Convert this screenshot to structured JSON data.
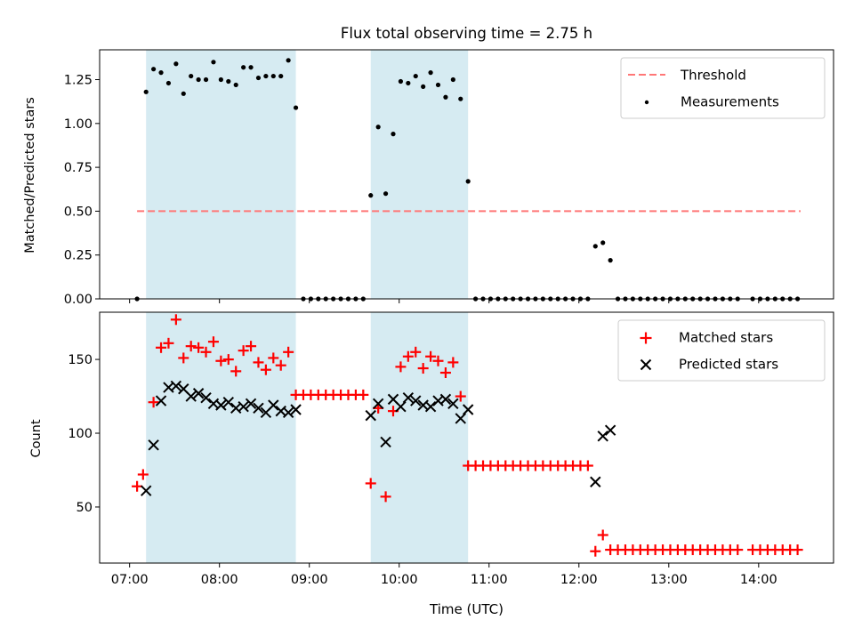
{
  "chart_data": {
    "type": "scatter",
    "title": "Flux total observing time = 2.75 h",
    "xlabel": "Time (UTC)",
    "x_ticks": [
      "07:00",
      "08:00",
      "09:00",
      "10:00",
      "11:00",
      "12:00",
      "13:00",
      "14:00"
    ],
    "observing_windows": [
      [
        "07:11",
        "08:51"
      ],
      [
        "09:41",
        "10:46"
      ]
    ],
    "colors": {
      "window": "#add8e6",
      "threshold": "#ff7777",
      "matched": "#ff0000",
      "predicted": "#000000",
      "measurement": "#000000"
    },
    "panels": [
      {
        "id": "ratio",
        "ylabel": "Matched/Predicted stars",
        "ylim": [
          0,
          1.42
        ],
        "yticks": [
          "0.00",
          "0.25",
          "0.50",
          "0.75",
          "1.00",
          "1.25"
        ],
        "legend": [
          "Threshold",
          "Measurements"
        ],
        "legend_position": "top-right",
        "threshold": {
          "name": "Threshold",
          "y": 0.5,
          "x_range": [
            "07:05",
            "14:28"
          ]
        },
        "measurements": {
          "name": "Measurements",
          "points": [
            [
              "07:05",
              0.0
            ],
            [
              "07:11",
              1.18
            ],
            [
              "07:16",
              1.31
            ],
            [
              "07:21",
              1.29
            ],
            [
              "07:26",
              1.23
            ],
            [
              "07:31",
              1.34
            ],
            [
              "07:36",
              1.17
            ],
            [
              "07:41",
              1.27
            ],
            [
              "07:46",
              1.25
            ],
            [
              "07:51",
              1.25
            ],
            [
              "07:56",
              1.35
            ],
            [
              "08:01",
              1.25
            ],
            [
              "08:06",
              1.24
            ],
            [
              "08:11",
              1.22
            ],
            [
              "08:16",
              1.32
            ],
            [
              "08:21",
              1.32
            ],
            [
              "08:26",
              1.26
            ],
            [
              "08:31",
              1.27
            ],
            [
              "08:36",
              1.27
            ],
            [
              "08:41",
              1.27
            ],
            [
              "08:46",
              1.36
            ],
            [
              "08:51",
              1.09
            ],
            [
              "08:56",
              0.0
            ],
            [
              "09:01",
              0.0
            ],
            [
              "09:06",
              0.0
            ],
            [
              "09:11",
              0.0
            ],
            [
              "09:16",
              0.0
            ],
            [
              "09:21",
              0.0
            ],
            [
              "09:26",
              0.0
            ],
            [
              "09:31",
              0.0
            ],
            [
              "09:36",
              0.0
            ],
            [
              "09:41",
              0.59
            ],
            [
              "09:46",
              0.98
            ],
            [
              "09:51",
              0.6
            ],
            [
              "09:56",
              0.94
            ],
            [
              "10:01",
              1.24
            ],
            [
              "10:06",
              1.23
            ],
            [
              "10:11",
              1.27
            ],
            [
              "10:16",
              1.21
            ],
            [
              "10:21",
              1.29
            ],
            [
              "10:26",
              1.22
            ],
            [
              "10:31",
              1.15
            ],
            [
              "10:36",
              1.25
            ],
            [
              "10:41",
              1.14
            ],
            [
              "10:46",
              0.67
            ],
            [
              "10:51",
              0.0
            ],
            [
              "10:56",
              0.0
            ],
            [
              "11:01",
              0.0
            ],
            [
              "11:06",
              0.0
            ],
            [
              "11:11",
              0.0
            ],
            [
              "11:16",
              0.0
            ],
            [
              "11:21",
              0.0
            ],
            [
              "11:26",
              0.0
            ],
            [
              "11:31",
              0.0
            ],
            [
              "11:36",
              0.0
            ],
            [
              "11:41",
              0.0
            ],
            [
              "11:46",
              0.0
            ],
            [
              "11:51",
              0.0
            ],
            [
              "11:56",
              0.0
            ],
            [
              "12:01",
              0.0
            ],
            [
              "12:06",
              0.0
            ],
            [
              "12:11",
              0.3
            ],
            [
              "12:16",
              0.32
            ],
            [
              "12:21",
              0.22
            ],
            [
              "12:26",
              0.0
            ],
            [
              "12:31",
              0.0
            ],
            [
              "12:36",
              0.0
            ],
            [
              "12:41",
              0.0
            ],
            [
              "12:46",
              0.0
            ],
            [
              "12:51",
              0.0
            ],
            [
              "12:56",
              0.0
            ],
            [
              "13:01",
              0.0
            ],
            [
              "13:06",
              0.0
            ],
            [
              "13:11",
              0.0
            ],
            [
              "13:16",
              0.0
            ],
            [
              "13:21",
              0.0
            ],
            [
              "13:26",
              0.0
            ],
            [
              "13:31",
              0.0
            ],
            [
              "13:36",
              0.0
            ],
            [
              "13:41",
              0.0
            ],
            [
              "13:46",
              0.0
            ],
            [
              "13:56",
              0.0
            ],
            [
              "14:01",
              0.0
            ],
            [
              "14:06",
              0.0
            ],
            [
              "14:11",
              0.0
            ],
            [
              "14:16",
              0.0
            ],
            [
              "14:21",
              0.0
            ],
            [
              "14:26",
              0.0
            ]
          ]
        }
      },
      {
        "id": "counts",
        "ylabel": "Count",
        "ylim": [
          12,
          182
        ],
        "yticks": [
          "50",
          "100",
          "150"
        ],
        "legend": [
          "Matched stars",
          "Predicted stars"
        ],
        "legend_position": "top-right",
        "series": [
          {
            "name": "Matched stars",
            "marker": "+",
            "points": [
              [
                "07:05",
                64
              ],
              [
                "07:09",
                72
              ],
              [
                "07:16",
                121
              ],
              [
                "07:21",
                158
              ],
              [
                "07:26",
                161
              ],
              [
                "07:31",
                177
              ],
              [
                "07:36",
                151
              ],
              [
                "07:41",
                159
              ],
              [
                "07:46",
                158
              ],
              [
                "07:51",
                155
              ],
              [
                "07:56",
                162
              ],
              [
                "08:01",
                149
              ],
              [
                "08:06",
                150
              ],
              [
                "08:11",
                142
              ],
              [
                "08:16",
                156
              ],
              [
                "08:21",
                159
              ],
              [
                "08:26",
                148
              ],
              [
                "08:31",
                143
              ],
              [
                "08:36",
                151
              ],
              [
                "08:41",
                146
              ],
              [
                "08:46",
                155
              ],
              [
                "08:51",
                126
              ],
              [
                "08:56",
                126
              ],
              [
                "09:01",
                126
              ],
              [
                "09:06",
                126
              ],
              [
                "09:11",
                126
              ],
              [
                "09:16",
                126
              ],
              [
                "09:21",
                126
              ],
              [
                "09:26",
                126
              ],
              [
                "09:31",
                126
              ],
              [
                "09:36",
                126
              ],
              [
                "09:41",
                66
              ],
              [
                "09:46",
                117
              ],
              [
                "09:51",
                57
              ],
              [
                "09:56",
                115
              ],
              [
                "10:01",
                145
              ],
              [
                "10:06",
                152
              ],
              [
                "10:11",
                155
              ],
              [
                "10:16",
                144
              ],
              [
                "10:21",
                152
              ],
              [
                "10:26",
                149
              ],
              [
                "10:31",
                141
              ],
              [
                "10:36",
                148
              ],
              [
                "10:41",
                125
              ],
              [
                "10:46",
                78
              ],
              [
                "10:51",
                78
              ],
              [
                "10:56",
                78
              ],
              [
                "11:01",
                78
              ],
              [
                "11:06",
                78
              ],
              [
                "11:11",
                78
              ],
              [
                "11:16",
                78
              ],
              [
                "11:21",
                78
              ],
              [
                "11:26",
                78
              ],
              [
                "11:31",
                78
              ],
              [
                "11:36",
                78
              ],
              [
                "11:41",
                78
              ],
              [
                "11:46",
                78
              ],
              [
                "11:51",
                78
              ],
              [
                "11:56",
                78
              ],
              [
                "12:01",
                78
              ],
              [
                "12:06",
                78
              ],
              [
                "12:11",
                20
              ],
              [
                "12:16",
                31
              ],
              [
                "12:21",
                21
              ],
              [
                "12:26",
                21
              ],
              [
                "12:31",
                21
              ],
              [
                "12:36",
                21
              ],
              [
                "12:41",
                21
              ],
              [
                "12:46",
                21
              ],
              [
                "12:51",
                21
              ],
              [
                "12:56",
                21
              ],
              [
                "13:01",
                21
              ],
              [
                "13:06",
                21
              ],
              [
                "13:11",
                21
              ],
              [
                "13:16",
                21
              ],
              [
                "13:21",
                21
              ],
              [
                "13:26",
                21
              ],
              [
                "13:31",
                21
              ],
              [
                "13:36",
                21
              ],
              [
                "13:41",
                21
              ],
              [
                "13:46",
                21
              ],
              [
                "13:56",
                21
              ],
              [
                "14:01",
                21
              ],
              [
                "14:06",
                21
              ],
              [
                "14:11",
                21
              ],
              [
                "14:16",
                21
              ],
              [
                "14:21",
                21
              ],
              [
                "14:26",
                21
              ]
            ]
          },
          {
            "name": "Predicted stars",
            "marker": "x",
            "points": [
              [
                "07:11",
                61
              ],
              [
                "07:16",
                92
              ],
              [
                "07:21",
                122
              ],
              [
                "07:26",
                131
              ],
              [
                "07:31",
                132
              ],
              [
                "07:36",
                130
              ],
              [
                "07:41",
                125
              ],
              [
                "07:46",
                127
              ],
              [
                "07:51",
                124
              ],
              [
                "07:56",
                120
              ],
              [
                "08:01",
                119
              ],
              [
                "08:06",
                121
              ],
              [
                "08:11",
                117
              ],
              [
                "08:16",
                118
              ],
              [
                "08:21",
                120
              ],
              [
                "08:26",
                117
              ],
              [
                "08:31",
                114
              ],
              [
                "08:36",
                119
              ],
              [
                "08:41",
                115
              ],
              [
                "08:46",
                114
              ],
              [
                "08:51",
                116
              ],
              [
                "09:41",
                112
              ],
              [
                "09:46",
                120
              ],
              [
                "09:51",
                94
              ],
              [
                "09:56",
                123
              ],
              [
                "10:01",
                118
              ],
              [
                "10:06",
                124
              ],
              [
                "10:11",
                122
              ],
              [
                "10:16",
                119
              ],
              [
                "10:21",
                118
              ],
              [
                "10:26",
                122
              ],
              [
                "10:31",
                123
              ],
              [
                "10:36",
                120
              ],
              [
                "10:41",
                110
              ],
              [
                "10:46",
                116
              ],
              [
                "12:11",
                67
              ],
              [
                "12:16",
                98
              ],
              [
                "12:21",
                102
              ]
            ]
          }
        ]
      }
    ]
  }
}
